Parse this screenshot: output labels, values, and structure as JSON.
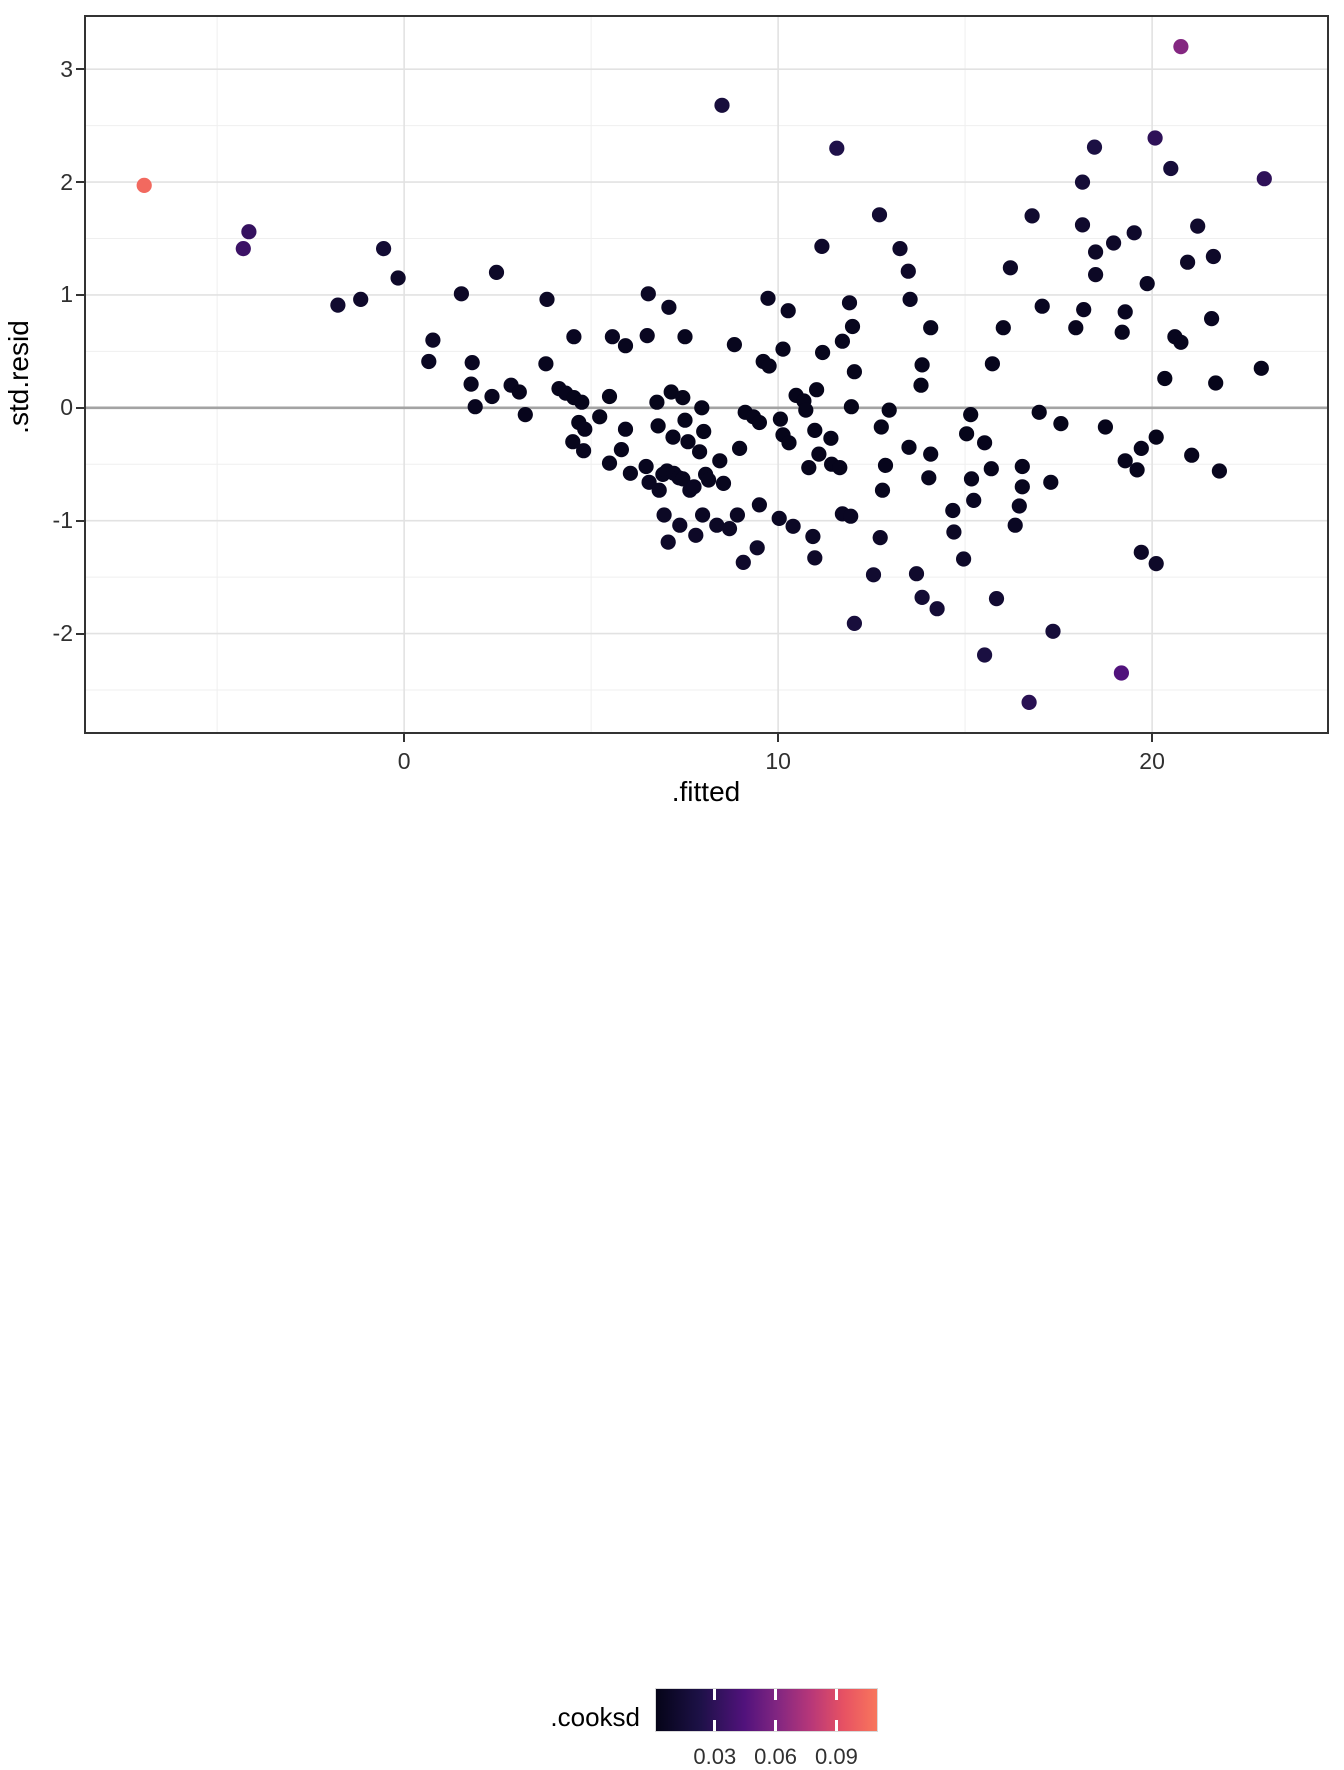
{
  "figure": {
    "type_note": "residuals-vs-fitted diagnostic scatter plot"
  },
  "axes": {
    "x": {
      "label": ".fitted",
      "major_ticks": [
        0,
        10,
        20
      ],
      "minor_gridlines": [
        -5,
        5,
        15
      ],
      "range": [
        -8.56,
        24.73
      ]
    },
    "y": {
      "label": ".std.resid",
      "major_ticks": [
        3,
        2,
        1,
        0,
        -1,
        -2
      ],
      "minor_gridlines": [
        2.5,
        1.5,
        0.5,
        -0.5,
        -1.5,
        -2.5
      ],
      "range": [
        -2.89,
        3.48
      ],
      "zero_line": 0
    }
  },
  "legend": {
    "title": ".cooksd",
    "tick_labels": [
      "0.03",
      "0.06",
      "0.09"
    ],
    "tick_values": [
      0.03,
      0.06,
      0.09
    ],
    "range": [
      0.001,
      0.111
    ],
    "gradient_anchors": [
      [
        0,
        "#050418"
      ],
      [
        0.2,
        "#1d1147"
      ],
      [
        0.4,
        "#51127c"
      ],
      [
        0.55,
        "#822681"
      ],
      [
        0.7,
        "#b73779"
      ],
      [
        0.85,
        "#e75263"
      ],
      [
        1,
        "#f8765c"
      ]
    ]
  },
  "style": {
    "grid_major_color": "#e2e2e2",
    "grid_minor_color": "#efefef",
    "zero_line_color": "#a3a3a3",
    "panel_border_color": "#333333",
    "tick_color": "#333333",
    "point_radius": 7.6
  },
  "chart_data": {
    "type": "scatter",
    "title": "",
    "xlabel": ".fitted",
    "ylabel": ".std.resid",
    "color_label": ".cooksd",
    "xlim": [
      -8.56,
      24.73
    ],
    "ylim": [
      -2.89,
      3.48
    ],
    "color_lim": [
      0.001,
      0.111
    ],
    "legend_position": "bottom",
    "grid": true,
    "points_format": [
      "fitted",
      "std_resid",
      "cooksd"
    ],
    "points": [
      [
        -6.95,
        1.97,
        0.105
      ],
      [
        -4.15,
        1.56,
        0.033
      ],
      [
        -4.3,
        1.41,
        0.036
      ],
      [
        -1.77,
        0.91,
        0.012
      ],
      [
        -1.16,
        0.96,
        0.01
      ],
      [
        -0.55,
        1.41,
        0.014
      ],
      [
        -0.16,
        1.15,
        0.009
      ],
      [
        0.66,
        0.41,
        0.006
      ],
      [
        0.77,
        0.6,
        0.007
      ],
      [
        1.53,
        1.01,
        0.008
      ],
      [
        1.82,
        0.4,
        0.005
      ],
      [
        1.79,
        0.21,
        0.004
      ],
      [
        1.9,
        0.01,
        0.004
      ],
      [
        2.35,
        0.1,
        0.004
      ],
      [
        2.47,
        1.2,
        0.009
      ],
      [
        2.86,
        0.2,
        0.004
      ],
      [
        3.08,
        0.14,
        0.003
      ],
      [
        3.24,
        -0.06,
        0.003
      ],
      [
        3.79,
        0.39,
        0.004
      ],
      [
        3.82,
        0.96,
        0.007
      ],
      [
        4.14,
        0.17,
        0.003
      ],
      [
        4.32,
        0.13,
        0.003
      ],
      [
        4.54,
        0.09,
        0.002
      ],
      [
        4.54,
        0.63,
        0.005
      ],
      [
        4.75,
        0.05,
        0.002
      ],
      [
        4.51,
        -0.3,
        0.003
      ],
      [
        4.67,
        -0.13,
        0.002
      ],
      [
        4.83,
        -0.19,
        0.003
      ],
      [
        4.8,
        -0.38,
        0.004
      ],
      [
        5.23,
        -0.08,
        0.002
      ],
      [
        5.49,
        0.1,
        0.002
      ],
      [
        5.57,
        0.63,
        0.005
      ],
      [
        5.49,
        -0.49,
        0.004
      ],
      [
        5.81,
        -0.37,
        0.003
      ],
      [
        5.92,
        -0.19,
        0.003
      ],
      [
        5.92,
        0.55,
        0.004
      ],
      [
        6.05,
        -0.58,
        0.004
      ],
      [
        6.47,
        -0.52,
        0.004
      ],
      [
        6.5,
        0.64,
        0.005
      ],
      [
        6.53,
        1.01,
        0.007
      ],
      [
        6.55,
        -0.66,
        0.005
      ],
      [
        6.76,
        0.05,
        0.002
      ],
      [
        6.79,
        -0.16,
        0.002
      ],
      [
        6.82,
        -0.73,
        0.005
      ],
      [
        6.92,
        -0.59,
        0.004
      ],
      [
        6.95,
        -0.95,
        0.007
      ],
      [
        7.03,
        -0.56,
        0.004
      ],
      [
        7.06,
        -1.19,
        0.009
      ],
      [
        7.08,
        0.89,
        0.006
      ],
      [
        7.14,
        0.14,
        0.002
      ],
      [
        7.19,
        -0.26,
        0.003
      ],
      [
        7.21,
        -0.58,
        0.004
      ],
      [
        7.35,
        -0.62,
        0.004
      ],
      [
        7.37,
        -1.04,
        0.008
      ],
      [
        7.45,
        0.09,
        0.002
      ],
      [
        7.45,
        -0.63,
        0.004
      ],
      [
        7.51,
        0.63,
        0.004
      ],
      [
        7.51,
        -0.11,
        0.002
      ],
      [
        7.59,
        -0.3,
        0.003
      ],
      [
        7.64,
        -0.73,
        0.005
      ],
      [
        7.75,
        -0.7,
        0.005
      ],
      [
        7.8,
        -1.13,
        0.008
      ],
      [
        7.9,
        -0.39,
        0.003
      ],
      [
        7.96,
        0.0,
        0.002
      ],
      [
        7.98,
        -0.95,
        0.006
      ],
      [
        8.01,
        -0.21,
        0.002
      ],
      [
        8.06,
        -0.59,
        0.004
      ],
      [
        8.14,
        -0.64,
        0.004
      ],
      [
        8.36,
        -1.04,
        0.007
      ],
      [
        8.44,
        -0.47,
        0.003
      ],
      [
        8.5,
        2.68,
        0.018
      ],
      [
        8.54,
        -0.67,
        0.004
      ],
      [
        8.7,
        -1.07,
        0.007
      ],
      [
        8.83,
        0.56,
        0.004
      ],
      [
        8.91,
        -0.95,
        0.006
      ],
      [
        8.97,
        -0.36,
        0.003
      ],
      [
        9.07,
        -1.37,
        0.01
      ],
      [
        9.12,
        -0.04,
        0.002
      ],
      [
        9.34,
        -0.08,
        0.002
      ],
      [
        9.44,
        -1.24,
        0.009
      ],
      [
        9.5,
        -0.13,
        0.002
      ],
      [
        9.5,
        -0.86,
        0.005
      ],
      [
        9.6,
        0.41,
        0.003
      ],
      [
        9.73,
        0.97,
        0.006
      ],
      [
        9.76,
        0.37,
        0.003
      ],
      [
        10.03,
        -0.98,
        0.006
      ],
      [
        10.06,
        -0.1,
        0.002
      ],
      [
        10.13,
        0.52,
        0.003
      ],
      [
        10.13,
        -0.24,
        0.002
      ],
      [
        10.27,
        0.86,
        0.005
      ],
      [
        10.29,
        -0.31,
        0.002
      ],
      [
        10.4,
        -1.05,
        0.007
      ],
      [
        10.48,
        0.11,
        0.002
      ],
      [
        10.69,
        0.06,
        0.002
      ],
      [
        10.74,
        -0.02,
        0.002
      ],
      [
        10.82,
        -0.53,
        0.003
      ],
      [
        10.93,
        -1.14,
        0.007
      ],
      [
        10.98,
        -0.2,
        0.002
      ],
      [
        10.98,
        -1.33,
        0.009
      ],
      [
        11.03,
        0.16,
        0.002
      ],
      [
        11.09,
        -0.41,
        0.003
      ],
      [
        11.17,
        1.43,
        0.01
      ],
      [
        11.19,
        0.49,
        0.003
      ],
      [
        11.41,
        -0.27,
        0.002
      ],
      [
        11.43,
        -0.5,
        0.003
      ],
      [
        11.57,
        2.3,
        0.024
      ],
      [
        11.65,
        -0.53,
        0.003
      ],
      [
        11.72,
        0.59,
        0.004
      ],
      [
        11.72,
        -0.94,
        0.006
      ],
      [
        11.91,
        0.93,
        0.006
      ],
      [
        11.94,
        -0.96,
        0.006
      ],
      [
        11.96,
        0.01,
        0.002
      ],
      [
        11.99,
        0.72,
        0.004
      ],
      [
        12.04,
        0.32,
        0.003
      ],
      [
        12.04,
        -1.91,
        0.018
      ],
      [
        12.55,
        -1.48,
        0.012
      ],
      [
        12.71,
        1.71,
        0.013
      ],
      [
        12.76,
        -0.17,
        0.002
      ],
      [
        12.87,
        -0.51,
        0.003
      ],
      [
        12.97,
        -0.02,
        0.002
      ],
      [
        12.79,
        -0.73,
        0.004
      ],
      [
        12.73,
        -1.15,
        0.008
      ],
      [
        13.26,
        1.41,
        0.01
      ],
      [
        13.48,
        1.21,
        0.009
      ],
      [
        13.53,
        0.96,
        0.006
      ],
      [
        13.5,
        -0.35,
        0.003
      ],
      [
        13.7,
        -1.47,
        0.011
      ],
      [
        13.85,
        0.38,
        0.003
      ],
      [
        13.82,
        0.2,
        0.002
      ],
      [
        13.85,
        -1.68,
        0.014
      ],
      [
        14.08,
        0.71,
        0.004
      ],
      [
        14.08,
        -0.41,
        0.003
      ],
      [
        14.03,
        -0.62,
        0.004
      ],
      [
        14.25,
        -1.78,
        0.015
      ],
      [
        14.67,
        -0.91,
        0.005
      ],
      [
        14.7,
        -1.1,
        0.007
      ],
      [
        14.96,
        -1.34,
        0.009
      ],
      [
        15.15,
        -0.06,
        0.002
      ],
      [
        15.04,
        -0.23,
        0.002
      ],
      [
        15.52,
        -0.31,
        0.003
      ],
      [
        15.52,
        -2.19,
        0.02
      ],
      [
        15.7,
        -0.54,
        0.003
      ],
      [
        15.17,
        -0.63,
        0.004
      ],
      [
        15.23,
        -0.82,
        0.005
      ],
      [
        15.73,
        0.39,
        0.003
      ],
      [
        15.84,
        -1.69,
        0.013
      ],
      [
        16.02,
        0.71,
        0.004
      ],
      [
        16.21,
        1.24,
        0.008
      ],
      [
        16.34,
        -1.04,
        0.006
      ],
      [
        16.45,
        -0.87,
        0.005
      ],
      [
        16.53,
        -0.52,
        0.003
      ],
      [
        16.53,
        -0.7,
        0.004
      ],
      [
        16.71,
        -2.61,
        0.028
      ],
      [
        16.79,
        1.7,
        0.012
      ],
      [
        16.98,
        -0.04,
        0.002
      ],
      [
        17.06,
        0.9,
        0.005
      ],
      [
        17.29,
        -0.66,
        0.004
      ],
      [
        17.35,
        -1.98,
        0.017
      ],
      [
        17.56,
        -0.14,
        0.002
      ],
      [
        17.96,
        0.71,
        0.004
      ],
      [
        18.14,
        2.0,
        0.016
      ],
      [
        18.14,
        1.62,
        0.011
      ],
      [
        18.17,
        0.87,
        0.005
      ],
      [
        18.46,
        2.31,
        0.021
      ],
      [
        18.49,
        1.38,
        0.008
      ],
      [
        18.49,
        1.18,
        0.007
      ],
      [
        18.75,
        -0.17,
        0.002
      ],
      [
        18.97,
        1.46,
        0.009
      ],
      [
        19.18,
        -2.35,
        0.045
      ],
      [
        19.2,
        0.67,
        0.004
      ],
      [
        19.28,
        0.85,
        0.005
      ],
      [
        19.28,
        -0.47,
        0.003
      ],
      [
        19.52,
        1.55,
        0.01
      ],
      [
        19.6,
        -0.55,
        0.003
      ],
      [
        19.71,
        -0.36,
        0.003
      ],
      [
        19.71,
        -1.28,
        0.008
      ],
      [
        19.87,
        1.1,
        0.006
      ],
      [
        20.08,
        2.39,
        0.03
      ],
      [
        20.11,
        -0.26,
        0.002
      ],
      [
        20.11,
        -1.38,
        0.009
      ],
      [
        20.34,
        0.26,
        0.002
      ],
      [
        20.5,
        2.12,
        0.017
      ],
      [
        20.61,
        0.63,
        0.004
      ],
      [
        20.77,
        3.2,
        0.062
      ],
      [
        20.77,
        0.58,
        0.004
      ],
      [
        20.95,
        1.29,
        0.008
      ],
      [
        21.06,
        -0.42,
        0.003
      ],
      [
        21.22,
        1.61,
        0.011
      ],
      [
        21.59,
        0.79,
        0.005
      ],
      [
        21.64,
        1.34,
        0.009
      ],
      [
        21.7,
        0.22,
        0.002
      ],
      [
        21.8,
        -0.56,
        0.004
      ],
      [
        22.92,
        0.35,
        0.003
      ],
      [
        23.0,
        2.03,
        0.03
      ]
    ]
  }
}
